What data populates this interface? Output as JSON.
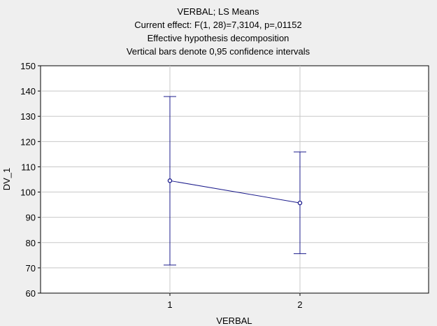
{
  "chart_data": {
    "type": "line",
    "title_lines": [
      "VERBAL; LS Means",
      "Current effect: F(1, 28)=7,3104, p=,01152",
      "Effective hypothesis decomposition",
      "Vertical bars denote 0,95 confidence intervals"
    ],
    "xlabel": "VERBAL",
    "ylabel": "DV_1",
    "categories": [
      "1",
      "2"
    ],
    "series": [
      {
        "values": [
          104.5,
          95.7
        ],
        "ci_lower": [
          71.1,
          75.6
        ],
        "ci_upper": [
          137.8,
          115.9
        ]
      }
    ],
    "ylim": [
      60,
      150
    ],
    "yticks": [
      60,
      70,
      80,
      90,
      100,
      110,
      120,
      130,
      140,
      150
    ],
    "grid": true,
    "colors": {
      "series": "#1c1c8c",
      "grid": "#c8c8c8",
      "plot_bg": "#ffffff",
      "background": "#efefef"
    }
  }
}
